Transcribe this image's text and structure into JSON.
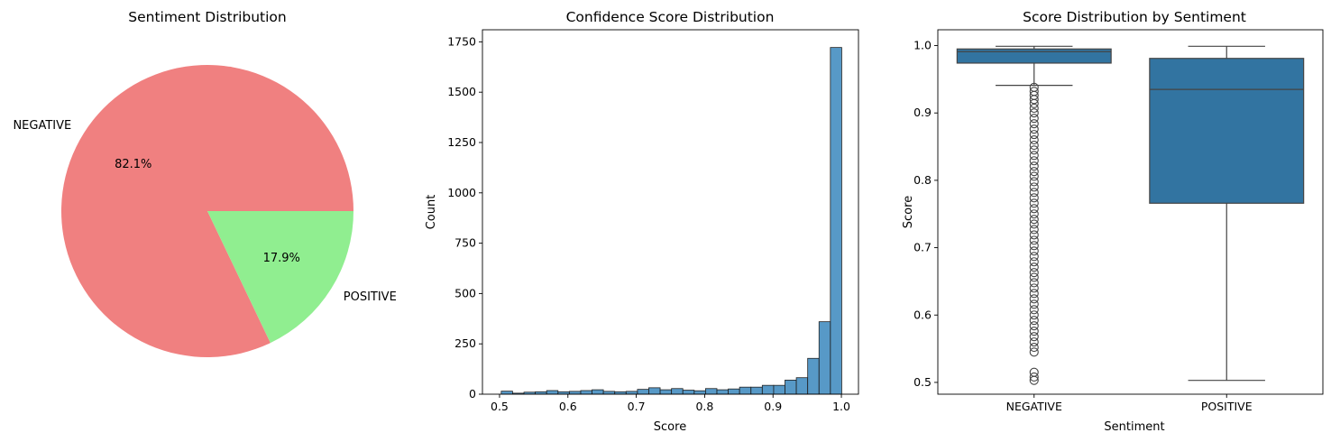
{
  "chart_data": [
    {
      "type": "pie",
      "title": "Sentiment Distribution",
      "labels": [
        "NEGATIVE",
        "POSITIVE"
      ],
      "values": [
        82.1,
        17.9
      ],
      "value_labels": [
        "82.1%",
        "17.9%"
      ],
      "colors": [
        "#f08080",
        "#90ee90"
      ],
      "start_angle": 0,
      "direction": "counterclockwise"
    },
    {
      "type": "bar",
      "subtype": "histogram",
      "title": "Confidence Score Distribution",
      "xlabel": "Score",
      "ylabel": "Count",
      "xlim": [
        0.475,
        1.025
      ],
      "ylim": [
        0,
        1810
      ],
      "xticks": [
        0.5,
        0.6,
        0.7,
        0.8,
        0.9,
        1.0
      ],
      "xtick_labels": [
        "0.5",
        "0.6",
        "0.7",
        "0.8",
        "0.9",
        "1.0"
      ],
      "yticks": [
        0,
        250,
        500,
        750,
        1000,
        1250,
        1500,
        1750
      ],
      "ytick_labels": [
        "0",
        "250",
        "500",
        "750",
        "1000",
        "1250",
        "1500",
        "1750"
      ],
      "bin_start": 0.5025,
      "bin_width": 0.0166,
      "counts": [
        15,
        5,
        10,
        12,
        18,
        12,
        14,
        18,
        22,
        14,
        12,
        14,
        24,
        32,
        22,
        28,
        20,
        17,
        28,
        22,
        26,
        35,
        35,
        44,
        44,
        70,
        82,
        178,
        360,
        1722
      ],
      "color": "#1f77b4"
    },
    {
      "type": "box",
      "title": "Score Distribution by Sentiment",
      "xlabel": "Sentiment",
      "ylabel": "Score",
      "categories": [
        "NEGATIVE",
        "POSITIVE"
      ],
      "ylim": [
        0.4825,
        1.0235
      ],
      "yticks": [
        0.5,
        0.6,
        0.7,
        0.8,
        0.9,
        1.0
      ],
      "ytick_labels": [
        "0.5",
        "0.6",
        "0.7",
        "0.8",
        "0.9",
        "1.0"
      ],
      "boxes": [
        {
          "q1": 0.974,
          "median": 0.991,
          "q3": 0.995,
          "whisker_low": 0.941,
          "whisker_high": 0.999,
          "outliers": [
            0.938,
            0.932,
            0.926,
            0.92,
            0.914,
            0.907,
            0.9,
            0.892,
            0.884,
            0.876,
            0.868,
            0.86,
            0.852,
            0.845,
            0.837,
            0.829,
            0.821,
            0.813,
            0.806,
            0.798,
            0.79,
            0.782,
            0.774,
            0.766,
            0.758,
            0.75,
            0.742,
            0.735,
            0.727,
            0.719,
            0.711,
            0.703,
            0.695,
            0.687,
            0.679,
            0.671,
            0.663,
            0.656,
            0.648,
            0.64,
            0.632,
            0.624,
            0.616,
            0.608,
            0.6,
            0.592,
            0.584,
            0.576,
            0.568,
            0.56,
            0.552,
            0.545,
            0.515,
            0.508,
            0.503
          ]
        },
        {
          "q1": 0.766,
          "median": 0.935,
          "q3": 0.981,
          "whisker_low": 0.503,
          "whisker_high": 0.999,
          "outliers": []
        }
      ],
      "color": "#3274a1"
    }
  ]
}
